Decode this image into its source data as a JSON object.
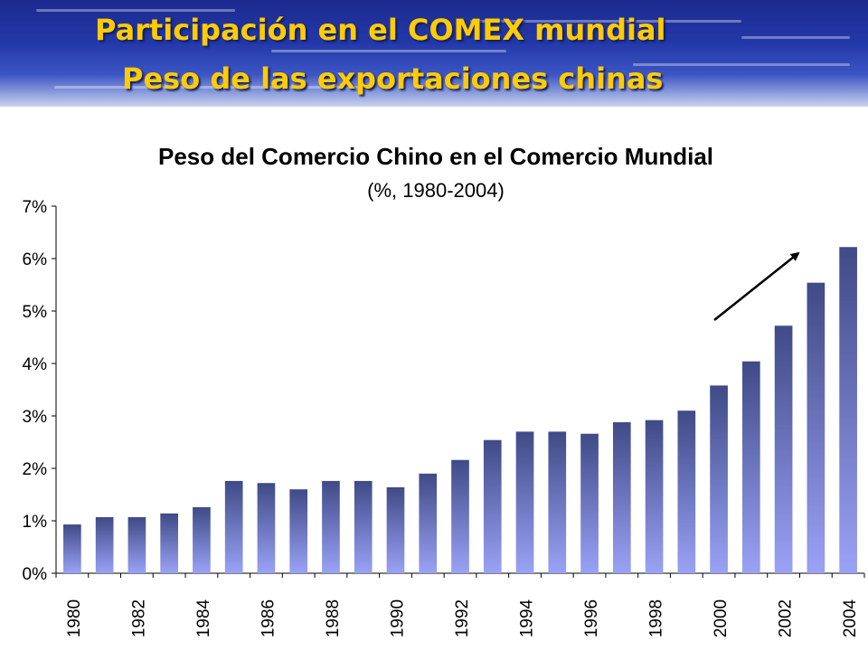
{
  "header": {
    "line1": "Participación en el COMEX mundial",
    "line2": "Peso de las exportaciones chinas",
    "title_color": "#ffcc00",
    "band_color": "#1c2a8f"
  },
  "chart_data": {
    "type": "bar",
    "title": "Peso del Comercio Chino en el Comercio Mundial",
    "subtitle": "(%, 1980-2004)",
    "categories": [
      "1980",
      "1981",
      "1982",
      "1983",
      "1984",
      "1985",
      "1986",
      "1987",
      "1988",
      "1989",
      "1990",
      "1991",
      "1992",
      "1993",
      "1994",
      "1995",
      "1996",
      "1997",
      "1998",
      "1999",
      "2000",
      "2001",
      "2002",
      "2003",
      "2004"
    ],
    "tick_labels": [
      "1980",
      "1982",
      "1984",
      "1986",
      "1988",
      "1990",
      "1992",
      "1994",
      "1996",
      "1998",
      "2000",
      "2002",
      "2004"
    ],
    "values": [
      0.93,
      1.07,
      1.07,
      1.14,
      1.26,
      1.76,
      1.72,
      1.6,
      1.76,
      1.76,
      1.64,
      1.9,
      2.16,
      2.54,
      2.7,
      2.7,
      2.66,
      2.88,
      2.92,
      3.1,
      3.58,
      4.04,
      4.72,
      5.54,
      6.22
    ],
    "ylim": [
      0,
      7
    ],
    "yticks": [
      "0%",
      "1%",
      "2%",
      "3%",
      "4%",
      "5%",
      "6%",
      "7%"
    ],
    "xlabel": "",
    "ylabel": "",
    "grid": false,
    "bar_color_top": "#3f4a86",
    "bar_color_bottom": "#9aa2f6",
    "annotation": "trend arrow pointing up over 2000-2003"
  }
}
